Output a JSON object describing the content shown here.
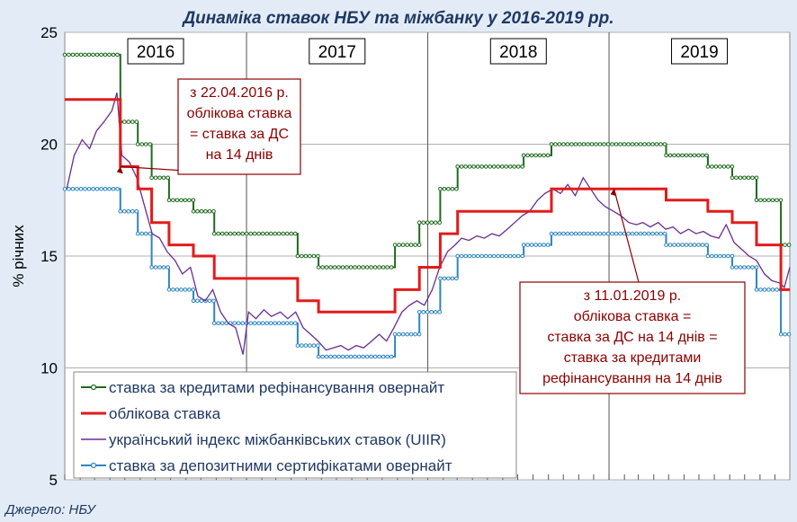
{
  "chart_data": {
    "type": "line",
    "title": "Динаміка ставок НБУ та міжбанку у 2016-2019 рр.",
    "ylabel": "% річних",
    "ylim": [
      5,
      25
    ],
    "yticks": [
      "5",
      "10",
      "15",
      "20",
      "25"
    ],
    "xlim": [
      "2016-01-01",
      "2019-12-31"
    ],
    "years": [
      "2016",
      "2017",
      "2018",
      "2019"
    ],
    "source": "Джерело: НБУ",
    "series": [
      {
        "name": "ставка за кредитами рефінансування овернайт",
        "color": "#1e6b1e",
        "style": "step-markers",
        "points": [
          [
            "2016-01-01",
            24
          ],
          [
            "2016-04-22",
            24
          ],
          [
            "2016-04-22",
            21
          ],
          [
            "2016-05-27",
            21
          ],
          [
            "2016-05-27",
            20
          ],
          [
            "2016-06-24",
            20
          ],
          [
            "2016-06-24",
            18.5
          ],
          [
            "2016-07-29",
            18.5
          ],
          [
            "2016-07-29",
            17.5
          ],
          [
            "2016-09-16",
            17.5
          ],
          [
            "2016-09-16",
            17
          ],
          [
            "2016-10-28",
            17
          ],
          [
            "2016-10-28",
            16
          ],
          [
            "2017-04-14",
            16
          ],
          [
            "2017-04-14",
            15
          ],
          [
            "2017-05-26",
            15
          ],
          [
            "2017-05-26",
            14.5
          ],
          [
            "2017-10-27",
            14.5
          ],
          [
            "2017-10-27",
            15.5
          ],
          [
            "2017-12-15",
            15.5
          ],
          [
            "2017-12-15",
            16.5
          ],
          [
            "2018-01-26",
            16.5
          ],
          [
            "2018-01-26",
            18
          ],
          [
            "2018-03-02",
            18
          ],
          [
            "2018-03-02",
            19
          ],
          [
            "2018-07-13",
            19
          ],
          [
            "2018-07-13",
            19.5
          ],
          [
            "2018-09-07",
            19.5
          ],
          [
            "2018-09-07",
            20
          ],
          [
            "2019-04-26",
            20
          ],
          [
            "2019-04-26",
            19.5
          ],
          [
            "2019-07-19",
            19.5
          ],
          [
            "2019-07-19",
            19
          ],
          [
            "2019-09-06",
            19
          ],
          [
            "2019-09-06",
            18.5
          ],
          [
            "2019-10-25",
            18.5
          ],
          [
            "2019-10-25",
            17.5
          ],
          [
            "2019-12-13",
            17.5
          ],
          [
            "2019-12-13",
            15.5
          ],
          [
            "2019-12-31",
            15.5
          ]
        ]
      },
      {
        "name": "облікова ставка",
        "color": "#e31b1b",
        "style": "step",
        "points": [
          [
            "2016-01-01",
            22
          ],
          [
            "2016-04-22",
            22
          ],
          [
            "2016-04-22",
            19
          ],
          [
            "2016-05-27",
            19
          ],
          [
            "2016-05-27",
            18
          ],
          [
            "2016-06-24",
            18
          ],
          [
            "2016-06-24",
            16.5
          ],
          [
            "2016-07-29",
            16.5
          ],
          [
            "2016-07-29",
            15.5
          ],
          [
            "2016-09-16",
            15.5
          ],
          [
            "2016-09-16",
            15
          ],
          [
            "2016-10-28",
            15
          ],
          [
            "2016-10-28",
            14
          ],
          [
            "2017-04-14",
            14
          ],
          [
            "2017-04-14",
            13
          ],
          [
            "2017-05-26",
            13
          ],
          [
            "2017-05-26",
            12.5
          ],
          [
            "2017-10-27",
            12.5
          ],
          [
            "2017-10-27",
            13.5
          ],
          [
            "2017-12-15",
            13.5
          ],
          [
            "2017-12-15",
            14.5
          ],
          [
            "2018-01-26",
            14.5
          ],
          [
            "2018-01-26",
            16
          ],
          [
            "2018-03-02",
            16
          ],
          [
            "2018-03-02",
            17
          ],
          [
            "2018-09-07",
            17
          ],
          [
            "2018-09-07",
            18
          ],
          [
            "2019-04-26",
            18
          ],
          [
            "2019-04-26",
            17.5
          ],
          [
            "2019-07-19",
            17.5
          ],
          [
            "2019-07-19",
            17
          ],
          [
            "2019-09-06",
            17
          ],
          [
            "2019-09-06",
            16.5
          ],
          [
            "2019-10-25",
            16.5
          ],
          [
            "2019-10-25",
            15.5
          ],
          [
            "2019-12-13",
            15.5
          ],
          [
            "2019-12-13",
            13.5
          ],
          [
            "2019-12-31",
            13.5
          ]
        ]
      },
      {
        "name": "український індекс міжбанківських ставок (UIIR)",
        "color": "#6a2c91",
        "style": "line",
        "points": [
          [
            "2016-01-05",
            18
          ],
          [
            "2016-01-20",
            19.5
          ],
          [
            "2016-02-05",
            20.2
          ],
          [
            "2016-02-20",
            19.8
          ],
          [
            "2016-03-05",
            20.6
          ],
          [
            "2016-03-20",
            21.0
          ],
          [
            "2016-04-05",
            21.5
          ],
          [
            "2016-04-15",
            22.3
          ],
          [
            "2016-04-25",
            19.5
          ],
          [
            "2016-05-10",
            19.2
          ],
          [
            "2016-05-25",
            18.5
          ],
          [
            "2016-06-10",
            17.2
          ],
          [
            "2016-06-25",
            16.0
          ],
          [
            "2016-07-10",
            15.8
          ],
          [
            "2016-07-25",
            15.2
          ],
          [
            "2016-08-10",
            14.8
          ],
          [
            "2016-08-25",
            14.2
          ],
          [
            "2016-09-10",
            14.5
          ],
          [
            "2016-09-25",
            13.2
          ],
          [
            "2016-10-10",
            13.0
          ],
          [
            "2016-10-25",
            13.5
          ],
          [
            "2016-11-10",
            12.5
          ],
          [
            "2016-11-25",
            12.0
          ],
          [
            "2016-12-10",
            11.8
          ],
          [
            "2016-12-25",
            10.6
          ],
          [
            "2017-01-05",
            12.5
          ],
          [
            "2017-01-20",
            12.2
          ],
          [
            "2017-02-05",
            12.6
          ],
          [
            "2017-02-20",
            12.3
          ],
          [
            "2017-03-10",
            12.5
          ],
          [
            "2017-03-25",
            12.2
          ],
          [
            "2017-04-10",
            12.5
          ],
          [
            "2017-04-25",
            11.8
          ],
          [
            "2017-05-10",
            11.5
          ],
          [
            "2017-05-25",
            11.2
          ],
          [
            "2017-06-10",
            10.8
          ],
          [
            "2017-06-25",
            10.9
          ],
          [
            "2017-07-10",
            11.0
          ],
          [
            "2017-07-25",
            10.8
          ],
          [
            "2017-08-10",
            11.0
          ],
          [
            "2017-08-25",
            10.9
          ],
          [
            "2017-09-10",
            11.2
          ],
          [
            "2017-09-25",
            11.5
          ],
          [
            "2017-10-10",
            11.2
          ],
          [
            "2017-10-25",
            11.8
          ],
          [
            "2017-11-10",
            12.5
          ],
          [
            "2017-11-25",
            12.8
          ],
          [
            "2017-12-10",
            13.0
          ],
          [
            "2017-12-25",
            12.8
          ],
          [
            "2018-01-10",
            13.5
          ],
          [
            "2018-01-25",
            14.5
          ],
          [
            "2018-02-10",
            15.2
          ],
          [
            "2018-02-25",
            15.5
          ],
          [
            "2018-03-10",
            15.8
          ],
          [
            "2018-03-25",
            15.7
          ],
          [
            "2018-04-10",
            15.9
          ],
          [
            "2018-04-25",
            15.8
          ],
          [
            "2018-05-10",
            16.0
          ],
          [
            "2018-05-25",
            15.9
          ],
          [
            "2018-06-10",
            16.2
          ],
          [
            "2018-06-25",
            16.5
          ],
          [
            "2018-07-10",
            16.8
          ],
          [
            "2018-07-25",
            17.0
          ],
          [
            "2018-08-10",
            17.5
          ],
          [
            "2018-08-25",
            17.8
          ],
          [
            "2018-09-10",
            18.0
          ],
          [
            "2018-09-25",
            17.8
          ],
          [
            "2018-10-10",
            18.2
          ],
          [
            "2018-10-25",
            17.7
          ],
          [
            "2018-11-10",
            18.5
          ],
          [
            "2018-11-25",
            18.0
          ],
          [
            "2018-12-10",
            17.5
          ],
          [
            "2018-12-25",
            17.2
          ],
          [
            "2019-01-10",
            17.0
          ],
          [
            "2019-01-25",
            16.8
          ],
          [
            "2019-02-10",
            16.5
          ],
          [
            "2019-02-25",
            16.4
          ],
          [
            "2019-03-10",
            16.5
          ],
          [
            "2019-03-25",
            16.3
          ],
          [
            "2019-04-10",
            16.5
          ],
          [
            "2019-04-25",
            16.2
          ],
          [
            "2019-05-10",
            16.3
          ],
          [
            "2019-05-25",
            16.0
          ],
          [
            "2019-06-10",
            16.2
          ],
          [
            "2019-06-25",
            16.0
          ],
          [
            "2019-07-10",
            16.1
          ],
          [
            "2019-07-25",
            15.9
          ],
          [
            "2019-08-10",
            15.8
          ],
          [
            "2019-08-25",
            16.4
          ],
          [
            "2019-09-10",
            15.6
          ],
          [
            "2019-09-25",
            15.3
          ],
          [
            "2019-10-10",
            15.0
          ],
          [
            "2019-10-25",
            14.8
          ],
          [
            "2019-11-10",
            14.2
          ],
          [
            "2019-11-25",
            13.9
          ],
          [
            "2019-12-10",
            13.8
          ],
          [
            "2019-12-20",
            13.6
          ],
          [
            "2019-12-31",
            14.5
          ]
        ]
      },
      {
        "name": "ставка за депозитними сертифікатами овернайт",
        "color": "#2e86c1",
        "style": "step-markers",
        "points": [
          [
            "2016-01-01",
            18
          ],
          [
            "2016-04-22",
            18
          ],
          [
            "2016-04-22",
            17
          ],
          [
            "2016-05-27",
            17
          ],
          [
            "2016-05-27",
            16
          ],
          [
            "2016-06-24",
            16
          ],
          [
            "2016-06-24",
            14.5
          ],
          [
            "2016-07-29",
            14.5
          ],
          [
            "2016-07-29",
            13.5
          ],
          [
            "2016-09-16",
            13.5
          ],
          [
            "2016-09-16",
            13
          ],
          [
            "2016-10-28",
            13
          ],
          [
            "2016-10-28",
            12
          ],
          [
            "2017-04-14",
            12
          ],
          [
            "2017-04-14",
            11
          ],
          [
            "2017-05-26",
            11
          ],
          [
            "2017-05-26",
            10.5
          ],
          [
            "2017-10-27",
            10.5
          ],
          [
            "2017-10-27",
            11.5
          ],
          [
            "2017-12-15",
            11.5
          ],
          [
            "2017-12-15",
            12.5
          ],
          [
            "2018-01-26",
            12.5
          ],
          [
            "2018-01-26",
            14
          ],
          [
            "2018-03-02",
            14
          ],
          [
            "2018-03-02",
            15
          ],
          [
            "2018-07-13",
            15
          ],
          [
            "2018-07-13",
            15.5
          ],
          [
            "2018-09-07",
            15.5
          ],
          [
            "2018-09-07",
            16
          ],
          [
            "2019-04-26",
            16
          ],
          [
            "2019-04-26",
            15.5
          ],
          [
            "2019-07-19",
            15.5
          ],
          [
            "2019-07-19",
            15
          ],
          [
            "2019-09-06",
            15
          ],
          [
            "2019-09-06",
            14.5
          ],
          [
            "2019-10-25",
            14.5
          ],
          [
            "2019-10-25",
            13.5
          ],
          [
            "2019-12-13",
            13.5
          ],
          [
            "2019-12-13",
            11.5
          ],
          [
            "2019-12-31",
            11.5
          ]
        ]
      }
    ],
    "annotations": [
      {
        "lines": [
          "з 22.04.2016 р.",
          "облікова ставка",
          "= ставка за ДС",
          "на 14 днів"
        ],
        "x": "2016-04-22",
        "y": 19
      },
      {
        "lines": [
          "з 11.01.2019 р.",
          "облікова ставка =",
          "ставка за ДС на 14 днів =",
          "ставка за кредитами",
          "рефінансування на 14 днів"
        ],
        "x": "2019-01-11",
        "y": 18
      }
    ]
  }
}
